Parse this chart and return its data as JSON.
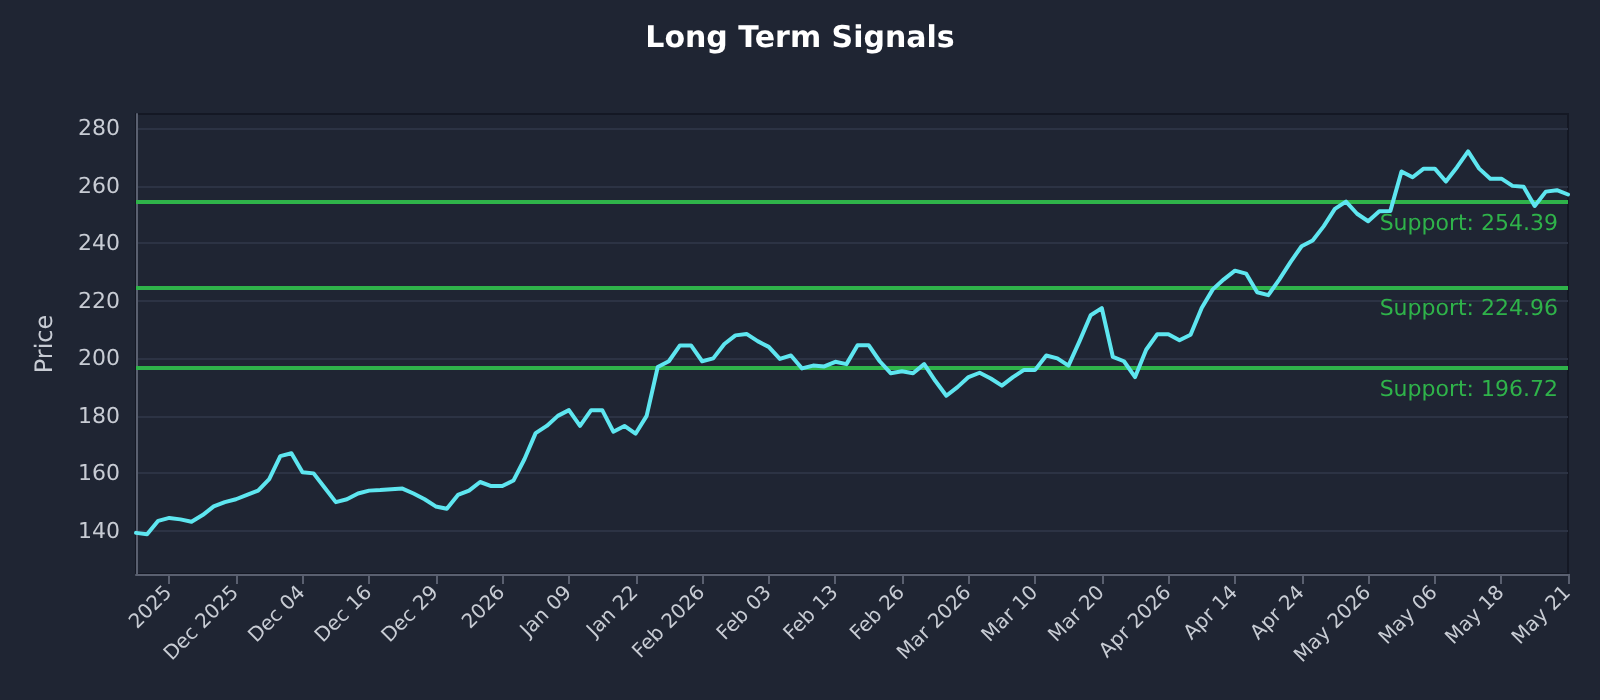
{
  "chart_data": {
    "type": "line",
    "title": "Long Term Signals",
    "ylabel": "Price",
    "categories": [
      null,
      null,
      null,
      "2025",
      null,
      null,
      null,
      null,
      null,
      "Dec 2025",
      null,
      null,
      null,
      null,
      null,
      "Dec 04",
      null,
      null,
      null,
      null,
      null,
      "Dec 16",
      null,
      null,
      null,
      null,
      null,
      "Dec 29",
      null,
      null,
      null,
      null,
      null,
      "2026",
      null,
      null,
      null,
      null,
      null,
      "Jan 09",
      null,
      null,
      null,
      null,
      null,
      "Jan 22",
      null,
      null,
      null,
      null,
      null,
      "Feb 2026",
      null,
      null,
      null,
      null,
      null,
      "Feb 03",
      null,
      null,
      null,
      null,
      null,
      "Feb 13",
      null,
      null,
      null,
      null,
      null,
      "Feb 26",
      null,
      null,
      null,
      null,
      null,
      "Mar 2026",
      null,
      null,
      null,
      null,
      null,
      "Mar 10",
      null,
      null,
      null,
      null,
      null,
      "Mar 20",
      null,
      null,
      null,
      null,
      null,
      "Apr 2026",
      null,
      null,
      null,
      null,
      null,
      "Apr 14",
      null,
      null,
      null,
      null,
      null,
      "Apr 24",
      null,
      null,
      null,
      null,
      null,
      "May 2026",
      null,
      null,
      null,
      null,
      null,
      "May 06",
      null,
      null,
      null,
      null,
      null,
      "May 18",
      null,
      null,
      null,
      null,
      null,
      "May 21"
    ],
    "series": [
      {
        "color": "#5ee6f0",
        "values": [
          139.3,
          138.8,
          143.5,
          144.5,
          144,
          143.2,
          145.5,
          148.5,
          150,
          151,
          152.5,
          154,
          158,
          166,
          167,
          160.4,
          160,
          155,
          150,
          151,
          153,
          154,
          154.2,
          154.5,
          154.7,
          153,
          151,
          148.5,
          147.7,
          152.5,
          154,
          157,
          155.6,
          155.6,
          157.5,
          165,
          174,
          176.5,
          180,
          182,
          176.5,
          182,
          182,
          174.5,
          176.5,
          173.8,
          180,
          197,
          199,
          204.5,
          204.5,
          199,
          200,
          205,
          208,
          208.5,
          206,
          204,
          199.8,
          201,
          196.5,
          197.5,
          197.2,
          198.8,
          198,
          204.6,
          204.6,
          199,
          194.8,
          195.5,
          194.8,
          198,
          192.2,
          187,
          190,
          193.5,
          195,
          193,
          190.5,
          193.5,
          196,
          196,
          201,
          200,
          197.5,
          206,
          215,
          217.5,
          200.5,
          199,
          193.5,
          203,
          208.4,
          208.4,
          206.3,
          208.2,
          217.5,
          224,
          227.5,
          230.5,
          229.5,
          223,
          222,
          227.5,
          233.5,
          239,
          241,
          246,
          252,
          254.5,
          250.3,
          247.7,
          251.2,
          251.3,
          265,
          263,
          266,
          266,
          261.5,
          266.5,
          272,
          266,
          262.5,
          262.5,
          260,
          259.7,
          253,
          258,
          258.5,
          257
        ]
      }
    ],
    "ylim": [
      125,
      285
    ],
    "yticks": [
      140,
      160,
      180,
      200,
      220,
      240,
      260,
      280
    ],
    "grid": "y",
    "marker": "none",
    "line_style": "solid",
    "ref_lines": [
      {
        "axis": "y",
        "value": 254.39,
        "label": "Support: 254.39",
        "color": "#2fb34a"
      },
      {
        "axis": "y",
        "value": 224.96,
        "label": "Support: 224.96",
        "color": "#2fb34a"
      },
      {
        "axis": "y",
        "value": 196.72,
        "label": "Support: 196.72",
        "color": "#2fb34a"
      }
    ]
  }
}
